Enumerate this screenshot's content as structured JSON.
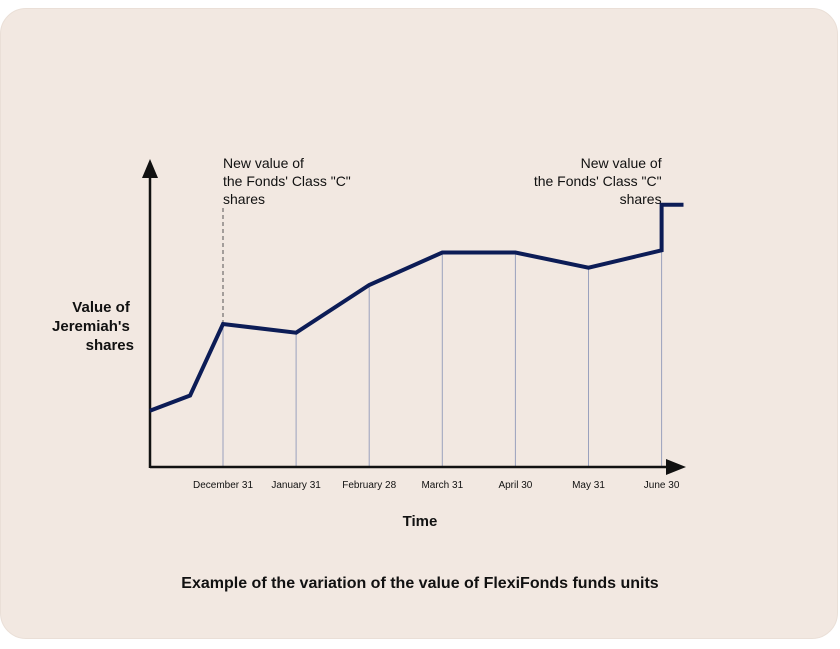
{
  "chart_data": {
    "type": "line",
    "title": "Example of the variation of the value of FlexiFonds funds units",
    "xlabel": "Time",
    "ylabel_lines": [
      "Value of",
      "Jeremiah's",
      "shares"
    ],
    "categories": [
      "December 31",
      "January 31",
      "February 28",
      "March 31",
      "April 30",
      "May 31",
      "June 30"
    ],
    "x": [
      -1,
      -0.45,
      0,
      1,
      2,
      3,
      4,
      5,
      6,
      6,
      6.3
    ],
    "y": [
      26,
      33,
      66,
      62,
      84,
      99,
      99,
      92,
      100,
      121,
      121
    ],
    "ylim": [
      0,
      150
    ],
    "xlim": [
      -1,
      6.4
    ],
    "grid": false,
    "line_color": "#0c1c56",
    "annotations": [
      {
        "at": "December 31",
        "lines": [
          "New value of",
          "the Fonds' Class \"C\"",
          "shares"
        ],
        "align": "left"
      },
      {
        "at": "June 30",
        "lines": [
          "New value of",
          "the Fonds' Class \"C\"",
          "shares"
        ],
        "align": "right"
      }
    ]
  }
}
